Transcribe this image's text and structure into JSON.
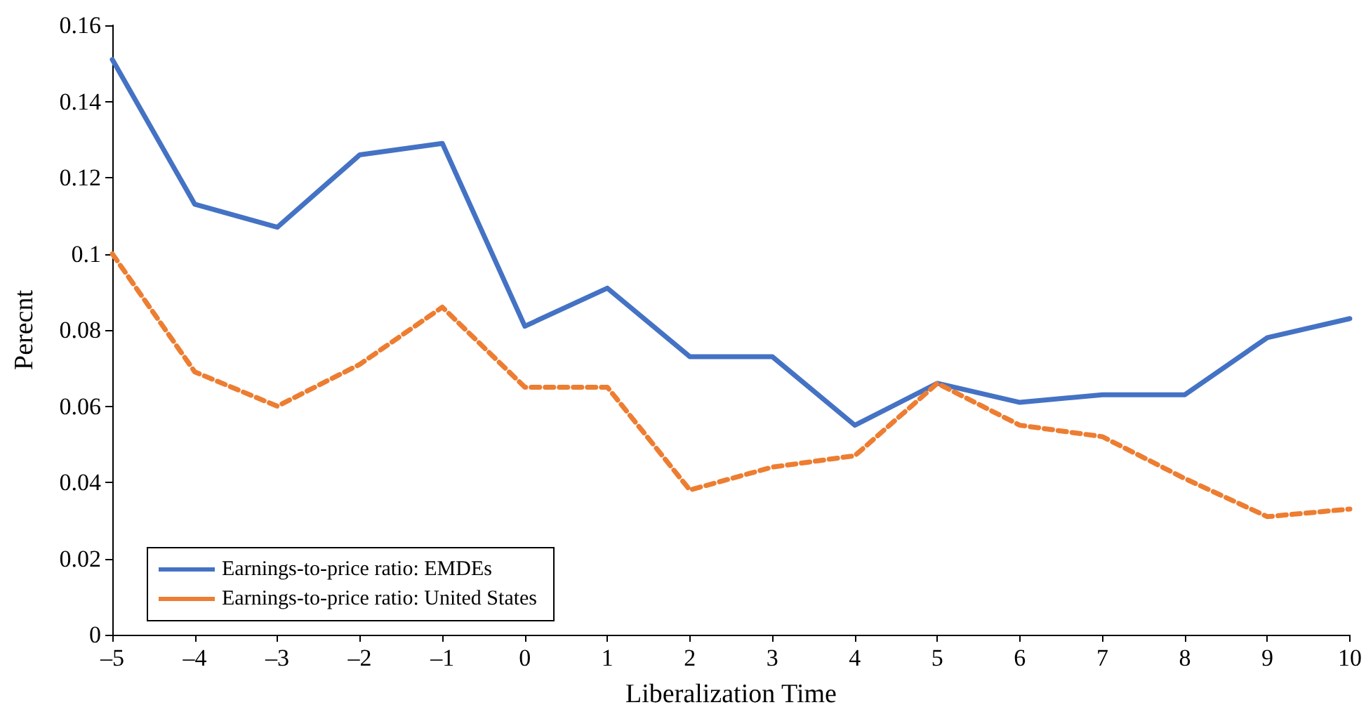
{
  "chart_data": {
    "type": "line",
    "xlabel": "Liberalization Time",
    "ylabel": "Perecnt",
    "x": [
      -5,
      -4,
      -3,
      -2,
      -1,
      0,
      1,
      2,
      3,
      4,
      5,
      6,
      7,
      8,
      9,
      10
    ],
    "series": [
      {
        "name": "Earnings-to-price ratio: EMDEs",
        "color": "#4472c4",
        "line_style": "solid",
        "values": [
          0.151,
          0.113,
          0.107,
          0.126,
          0.129,
          0.081,
          0.091,
          0.073,
          0.073,
          0.055,
          0.066,
          0.061,
          0.063,
          0.063,
          0.078,
          0.083
        ]
      },
      {
        "name": "Earnings-to-price ratio: United States",
        "color": "#ed7d31",
        "line_style": "dashed",
        "values": [
          0.1,
          0.069,
          0.06,
          0.071,
          0.086,
          0.065,
          0.065,
          0.038,
          0.044,
          0.047,
          0.066,
          0.055,
          0.052,
          0.041,
          0.031,
          0.033
        ]
      }
    ],
    "xlim": [
      -5,
      10
    ],
    "xticks": [
      {
        "value": -5,
        "label": "–5"
      },
      {
        "value": -4,
        "label": "–4"
      },
      {
        "value": -3,
        "label": "–3"
      },
      {
        "value": -2,
        "label": "–2"
      },
      {
        "value": -1,
        "label": "–1"
      },
      0,
      1,
      2,
      3,
      4,
      5,
      6,
      7,
      8,
      9,
      10
    ],
    "ylim": [
      0,
      0.16
    ],
    "yticks": [
      0,
      0.02,
      0.04,
      0.06,
      0.08,
      0.1,
      0.12,
      0.14,
      0.16
    ],
    "grid": false,
    "legend": "bottom left",
    "marker": "none"
  }
}
